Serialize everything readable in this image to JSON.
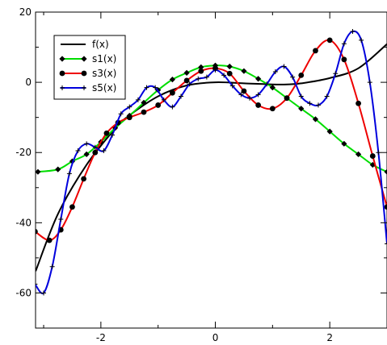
{
  "chart_data": {
    "type": "line",
    "title": "",
    "xlabel": "",
    "ylabel": "",
    "xlim": [
      -3.14159,
      3.0
    ],
    "ylim": [
      -70,
      20
    ],
    "xticks": [
      -2,
      0,
      2
    ],
    "yticks": [
      -60,
      -40,
      -20,
      0,
      20
    ],
    "x_tick_labels": [
      "-2",
      "0",
      "2"
    ],
    "y_tick_labels": [
      "-60",
      "-40",
      "-20",
      "0",
      "20"
    ],
    "grid": false,
    "legend_placement": "top-left",
    "series": [
      {
        "name": "f(x)",
        "color": "#000000",
        "marker": "none",
        "points": [
          [
            -3.14,
            -53.8
          ],
          [
            -2.75,
            -37.5
          ],
          [
            -2.25,
            -23.5
          ],
          [
            -1.75,
            -13.2
          ],
          [
            -1.5,
            -9.4
          ],
          [
            -1.0,
            -4.0
          ],
          [
            -0.5,
            -0.9
          ],
          [
            0,
            0
          ],
          [
            0.5,
            -0.3
          ],
          [
            1.0,
            -0.6
          ],
          [
            1.25,
            -0.6
          ],
          [
            1.5,
            -0.3
          ],
          [
            2.0,
            1.2
          ],
          [
            2.5,
            4.0
          ],
          [
            3.0,
            10.9
          ]
        ]
      },
      {
        "name": "s1(x)",
        "color": "#00dd00",
        "marker": "diamond",
        "points": [
          [
            -3.1,
            -25.5
          ],
          [
            -2.75,
            -24.8
          ],
          [
            -2.5,
            -22.5
          ],
          [
            -2.25,
            -20.5
          ],
          [
            -2.0,
            -17.0
          ],
          [
            -1.75,
            -13.0
          ],
          [
            -1.5,
            -9.5
          ],
          [
            -1.25,
            -5.8
          ],
          [
            -1.0,
            -2.2
          ],
          [
            -0.75,
            0.8
          ],
          [
            -0.5,
            2.7
          ],
          [
            -0.25,
            4.3
          ],
          [
            0,
            4.8
          ],
          [
            0.25,
            4.5
          ],
          [
            0.5,
            3.2
          ],
          [
            0.75,
            1.0
          ],
          [
            1.0,
            -1.5
          ],
          [
            1.25,
            -4.5
          ],
          [
            1.5,
            -7.5
          ],
          [
            1.75,
            -10.5
          ],
          [
            2.0,
            -14.0
          ],
          [
            2.25,
            -17.5
          ],
          [
            2.5,
            -20.5
          ],
          [
            2.75,
            -23.5
          ],
          [
            3.0,
            -25.5
          ]
        ]
      },
      {
        "name": "s3(x)",
        "color": "#ee0000",
        "marker": "circle",
        "points": [
          [
            -3.15,
            -42.5
          ],
          [
            -2.9,
            -45
          ],
          [
            -2.7,
            -42
          ],
          [
            -2.5,
            -35.5
          ],
          [
            -2.3,
            -27.5
          ],
          [
            -2.1,
            -20
          ],
          [
            -1.9,
            -14.5
          ],
          [
            -1.7,
            -11.5
          ],
          [
            -1.5,
            -10
          ],
          [
            -1.25,
            -8.5
          ],
          [
            -1.0,
            -6.5
          ],
          [
            -0.75,
            -3
          ],
          [
            -0.5,
            0.5
          ],
          [
            -0.25,
            3.2
          ],
          [
            0,
            4
          ],
          [
            0.25,
            2.5
          ],
          [
            0.5,
            -2.5
          ],
          [
            0.75,
            -6.5
          ],
          [
            1.0,
            -7.5
          ],
          [
            1.25,
            -4.5
          ],
          [
            1.5,
            2
          ],
          [
            1.75,
            9
          ],
          [
            2.0,
            12
          ],
          [
            2.25,
            6.5
          ],
          [
            2.5,
            -6
          ],
          [
            2.75,
            -21
          ],
          [
            3.0,
            -35.5
          ]
        ]
      },
      {
        "name": "s5(x)",
        "color": "#0000dd",
        "marker": "plus",
        "points": [
          [
            -3.15,
            -57.5
          ],
          [
            -3.0,
            -60
          ],
          [
            -2.85,
            -52.5
          ],
          [
            -2.7,
            -39
          ],
          [
            -2.55,
            -26
          ],
          [
            -2.4,
            -19.5
          ],
          [
            -2.25,
            -17.5
          ],
          [
            -2.1,
            -18.5
          ],
          [
            -1.95,
            -19.5
          ],
          [
            -1.8,
            -15
          ],
          [
            -1.65,
            -9
          ],
          [
            -1.5,
            -7
          ],
          [
            -1.35,
            -5
          ],
          [
            -1.2,
            -1.5
          ],
          [
            -1.05,
            -1.5
          ],
          [
            -0.9,
            -5
          ],
          [
            -0.75,
            -7
          ],
          [
            -0.6,
            -4
          ],
          [
            -0.45,
            -0.5
          ],
          [
            -0.3,
            1
          ],
          [
            -0.15,
            1.5
          ],
          [
            0,
            3.5
          ],
          [
            0.15,
            2
          ],
          [
            0.3,
            -1
          ],
          [
            0.45,
            -3.5
          ],
          [
            0.6,
            -4.5
          ],
          [
            0.75,
            -3.5
          ],
          [
            0.9,
            -0.5
          ],
          [
            1.05,
            3
          ],
          [
            1.2,
            4.5
          ],
          [
            1.35,
            1.5
          ],
          [
            1.5,
            -4
          ],
          [
            1.65,
            -6
          ],
          [
            1.8,
            -6.5
          ],
          [
            1.95,
            -4
          ],
          [
            2.1,
            2.5
          ],
          [
            2.25,
            11
          ],
          [
            2.4,
            14.5
          ],
          [
            2.55,
            12
          ],
          [
            2.7,
            0
          ],
          [
            2.85,
            -20
          ],
          [
            3.0,
            -46
          ]
        ]
      }
    ]
  }
}
